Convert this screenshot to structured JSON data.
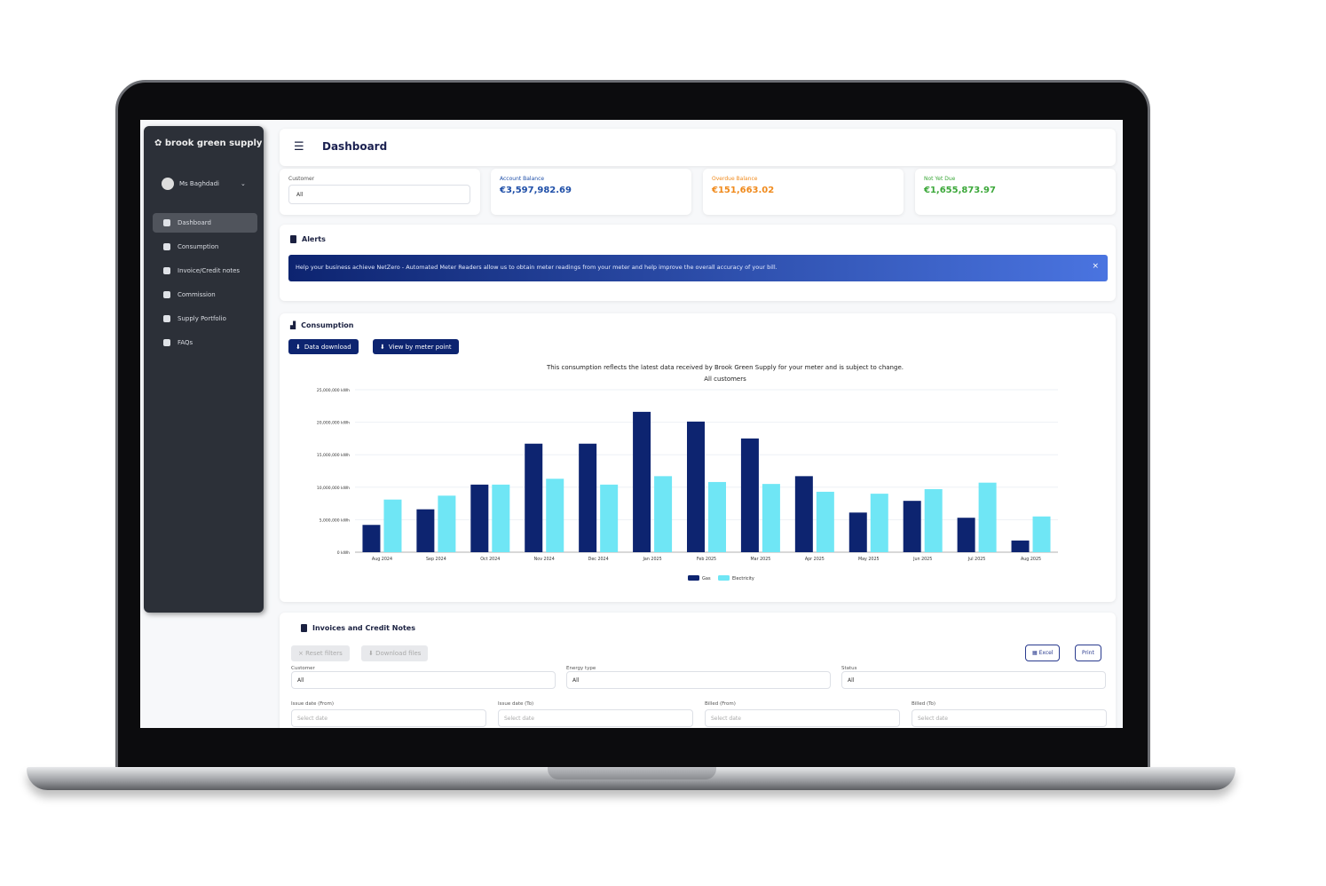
{
  "brand": "brook green supply",
  "user": "Ms Baghdadi",
  "sidebar": {
    "items": [
      {
        "label": "Dashboard",
        "icon": "dashboard-icon",
        "active": true
      },
      {
        "label": "Consumption",
        "icon": "chart-icon"
      },
      {
        "label": "Invoice/Credit notes",
        "icon": "document-icon"
      },
      {
        "label": "Commission",
        "icon": "calculator-icon"
      },
      {
        "label": "Supply Portfolio",
        "icon": "portfolio-icon"
      },
      {
        "label": "FAQs",
        "icon": "chat-icon"
      }
    ]
  },
  "header": {
    "title": "Dashboard"
  },
  "summary": {
    "customer_label": "Customer",
    "customer_value": "All",
    "account_balance_label": "Account Balance",
    "account_balance": "€3,597,982.69",
    "overdue_label": "Overdue Balance",
    "overdue": "€151,663.02",
    "not_yet_due_label": "Not Yet Due",
    "not_yet_due": "€1,655,873.97"
  },
  "colors": {
    "account": "#1f4fa8",
    "overdue": "#f08a1c",
    "not_yet_due": "#3ca83a",
    "gas": "#0d2470",
    "electricity": "#6fe6f5",
    "alert": "#1e3aa8"
  },
  "alerts": {
    "title": "Alerts",
    "message": "Help your business achieve NetZero - Automated Meter Readers allow us to obtain meter readings from your meter and help improve the overall accuracy of your bill.",
    "close": "×"
  },
  "consumption": {
    "title": "Consumption",
    "data_download": "Data download",
    "view_meter": "View by meter point",
    "note": "This consumption reflects the latest data received by Brook Green Supply for your meter and is subject to change.",
    "subtitle": "All customers"
  },
  "chart_data": {
    "type": "bar",
    "categories": [
      "Aug 2024",
      "Sep 2024",
      "Oct 2024",
      "Nov 2024",
      "Dec 2024",
      "Jan 2025",
      "Feb 2025",
      "Mar 2025",
      "Apr 2025",
      "May 2025",
      "Jun 2025",
      "Jul 2025",
      "Aug 2025"
    ],
    "series": [
      {
        "name": "Gas",
        "values": [
          4200000,
          6600000,
          10400000,
          16700000,
          16700000,
          21600000,
          20100000,
          17500000,
          11700000,
          6100000,
          7900000,
          5300000,
          1800000
        ]
      },
      {
        "name": "Electricity",
        "values": [
          8100000,
          8700000,
          10400000,
          11300000,
          10400000,
          11700000,
          10800000,
          10500000,
          9300000,
          9000000,
          9700000,
          10700000,
          5500000
        ]
      }
    ],
    "yticks": [
      "0 kWh",
      "5,000,000 kWh",
      "10,000,000 kWh",
      "15,000,000 kWh",
      "20,000,000 kWh",
      "25,000,000 kWh"
    ],
    "ylim": [
      0,
      25000000
    ],
    "grid": true,
    "legend": "bottom"
  },
  "invoices": {
    "title": "Invoices and Credit Notes",
    "reset": "× Reset filters",
    "download": "⬇ Download files",
    "excel": "Excel",
    "print": "Print",
    "filters": [
      {
        "label": "Customer",
        "value": "All"
      },
      {
        "label": "Energy type",
        "value": "All"
      },
      {
        "label": "Status",
        "value": "All"
      }
    ],
    "dates": [
      {
        "label": "Issue date (From)",
        "placeholder": "Select date"
      },
      {
        "label": "Issue date (To)",
        "placeholder": "Select date"
      },
      {
        "label": "Billed (From)",
        "placeholder": "Select date"
      },
      {
        "label": "Billed (To)",
        "placeholder": "Select date"
      }
    ]
  }
}
